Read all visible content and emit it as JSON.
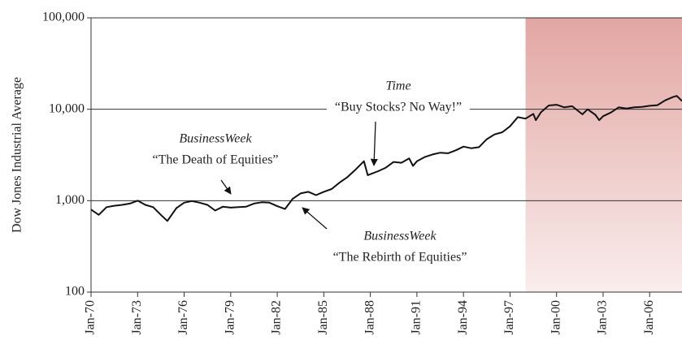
{
  "chart_data": {
    "type": "line",
    "y_label": "Dow Jones Industrial Average",
    "log_y": true,
    "grid": true,
    "color": "#111111",
    "ylim": [
      100,
      100000
    ],
    "yticks": [
      100,
      {
        "value": 1000,
        "label": "1,000"
      },
      {
        "value": 10000,
        "label": "10,000"
      },
      {
        "value": 100000,
        "label": "100,000"
      }
    ],
    "xlim": [
      "1970-01",
      "2008-02"
    ],
    "xticks": [
      {
        "value": "1970-01",
        "label": "Jan-70"
      },
      {
        "value": "1973-01",
        "label": "Jan-73"
      },
      {
        "value": "1976-01",
        "label": "Jan-76"
      },
      {
        "value": "1979-01",
        "label": "Jan-79"
      },
      {
        "value": "1982-01",
        "label": "Jan-82"
      },
      {
        "value": "1985-01",
        "label": "Jan-85"
      },
      {
        "value": "1988-01",
        "label": "Jan-88"
      },
      {
        "value": "1991-01",
        "label": "Jan-91"
      },
      {
        "value": "1994-01",
        "label": "Jan-94"
      },
      {
        "value": "1997-01",
        "label": "Jan-97"
      },
      {
        "value": "2000-01",
        "label": "Jan-00"
      },
      {
        "value": "2003-01",
        "label": "Jan-03"
      },
      {
        "value": "2006-01",
        "label": "Jan-06"
      }
    ],
    "shaded_region": {
      "from": "1998-01",
      "to": "2008-02",
      "color": "#e2a6a2"
    },
    "annotations": [
      {
        "source": "BusinessWeek",
        "headline": "“The Death of Equities”"
      },
      {
        "source": "Time",
        "headline": "“Buy Stocks? No Way!”"
      },
      {
        "source": "BusinessWeek",
        "headline": "“The Rebirth of Equities”"
      }
    ],
    "x": [
      "1970-01",
      "1970-07",
      "1971-01",
      "1971-07",
      "1972-01",
      "1972-07",
      "1973-01",
      "1973-07",
      "1974-01",
      "1974-07",
      "1974-12",
      "1975-07",
      "1976-01",
      "1976-07",
      "1977-01",
      "1977-07",
      "1978-01",
      "1978-07",
      "1979-01",
      "1979-07",
      "1980-01",
      "1980-07",
      "1981-01",
      "1981-07",
      "1982-01",
      "1982-07",
      "1983-01",
      "1983-07",
      "1984-01",
      "1984-07",
      "1985-01",
      "1985-07",
      "1986-01",
      "1986-07",
      "1987-01",
      "1987-08",
      "1987-11",
      "1988-01",
      "1988-07",
      "1989-01",
      "1989-07",
      "1990-01",
      "1990-07",
      "1990-10",
      "1991-01",
      "1991-07",
      "1992-01",
      "1992-07",
      "1993-01",
      "1993-07",
      "1994-01",
      "1994-07",
      "1995-01",
      "1995-07",
      "1996-01",
      "1996-07",
      "1997-01",
      "1997-07",
      "1998-01",
      "1998-07",
      "1998-09",
      "1999-01",
      "1999-07",
      "2000-01",
      "2000-07",
      "2001-01",
      "2001-09",
      "2002-01",
      "2002-07",
      "2002-10",
      "2003-01",
      "2003-07",
      "2004-01",
      "2004-07",
      "2005-01",
      "2005-07",
      "2006-01",
      "2006-07",
      "2007-01",
      "2007-07",
      "2007-10",
      "2008-02"
    ],
    "values": [
      800,
      700,
      850,
      880,
      900,
      930,
      1000,
      900,
      850,
      700,
      600,
      830,
      950,
      990,
      950,
      900,
      780,
      860,
      840,
      850,
      860,
      930,
      960,
      950,
      870,
      810,
      1050,
      1200,
      1250,
      1150,
      1250,
      1340,
      1570,
      1800,
      2150,
      2700,
      1900,
      1950,
      2100,
      2300,
      2650,
      2600,
      2900,
      2400,
      2700,
      3000,
      3200,
      3350,
      3300,
      3550,
      3900,
      3750,
      3850,
      4700,
      5300,
      5600,
      6500,
      8200,
      7900,
      8900,
      7600,
      9300,
      11000,
      11200,
      10500,
      10800,
      8800,
      10000,
      8700,
      7600,
      8400,
      9200,
      10500,
      10200,
      10500,
      10600,
      10900,
      11100,
      12500,
      13600,
      14000,
      12300
    ]
  }
}
